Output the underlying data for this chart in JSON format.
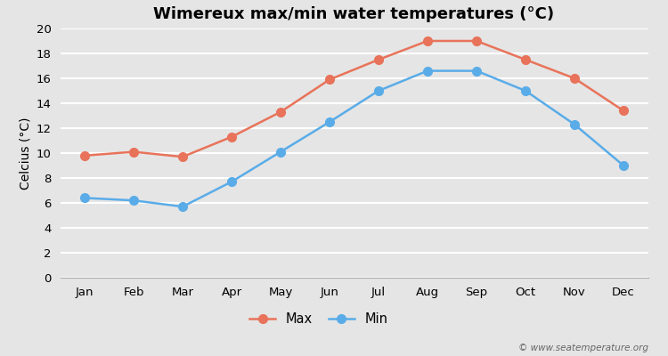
{
  "title": "Wimereux max/min water temperatures (°C)",
  "ylabel": "Celcius (°C)",
  "months": [
    "Jan",
    "Feb",
    "Mar",
    "Apr",
    "May",
    "Jun",
    "Jul",
    "Aug",
    "Sep",
    "Oct",
    "Nov",
    "Dec"
  ],
  "max_values": [
    9.8,
    10.1,
    9.7,
    11.3,
    13.3,
    15.9,
    17.5,
    19.0,
    19.0,
    17.5,
    16.0,
    13.4
  ],
  "min_values": [
    6.4,
    6.2,
    5.7,
    7.7,
    10.1,
    12.5,
    15.0,
    16.6,
    16.6,
    15.0,
    12.3,
    9.0
  ],
  "max_color": "#e8735a",
  "min_color": "#5aace8",
  "background_color": "#e5e5e5",
  "plot_bg_color": "#e5e5e5",
  "grid_color": "#ffffff",
  "ylim": [
    0,
    20
  ],
  "yticks": [
    0,
    2,
    4,
    6,
    8,
    10,
    12,
    14,
    16,
    18,
    20
  ],
  "legend_labels": [
    "Max",
    "Min"
  ],
  "watermark": "© www.seatemperature.org",
  "title_fontsize": 13,
  "axis_label_fontsize": 10,
  "tick_fontsize": 9.5,
  "legend_fontsize": 10.5,
  "marker_style": "o",
  "line_width": 1.8,
  "marker_size": 7
}
